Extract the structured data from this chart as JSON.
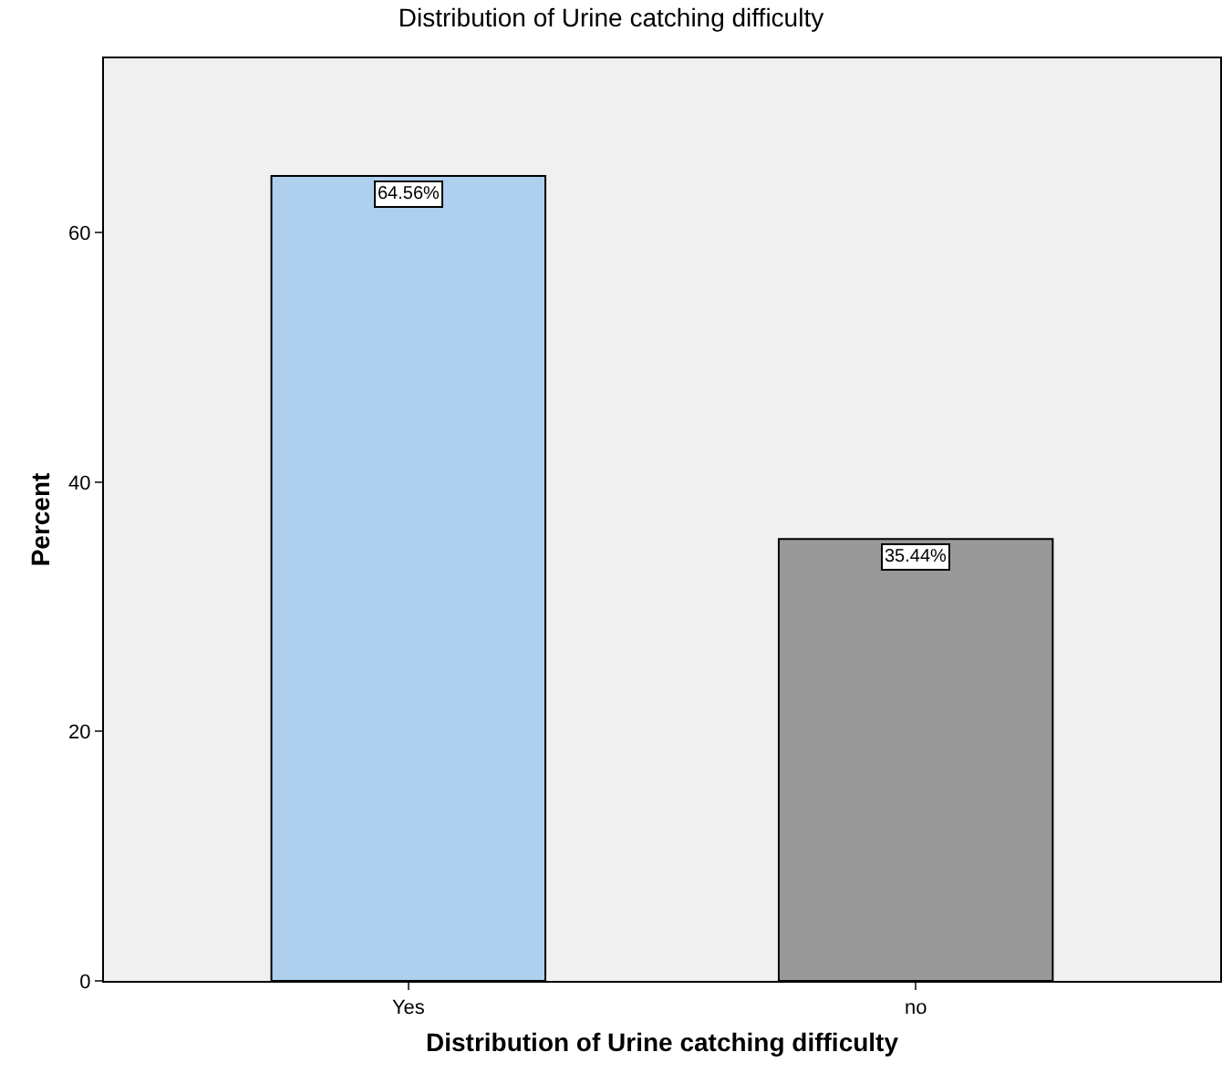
{
  "chart_data": {
    "type": "bar",
    "title": "Distribution of Urine catching difficulty",
    "xlabel": "Distribution of Urine catching difficulty",
    "ylabel": "Percent",
    "categories": [
      "Yes",
      "no"
    ],
    "values": [
      64.56,
      35.44
    ],
    "colors": [
      "#aecfee",
      "#999999"
    ],
    "value_labels": [
      "64.56%",
      "35.44%"
    ],
    "ylim": [
      0,
      74
    ],
    "yticks": [
      0,
      20,
      40,
      60
    ],
    "grid": false
  }
}
